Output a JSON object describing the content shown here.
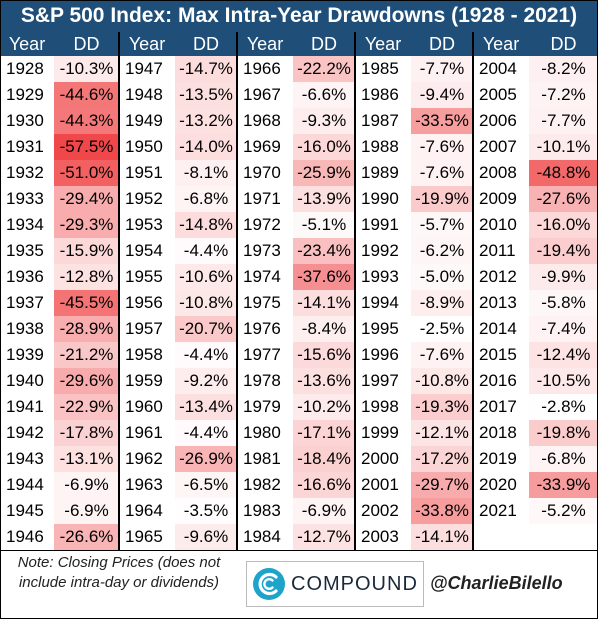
{
  "chart_data": {
    "type": "table",
    "title": "S&P 500 Index: Max Intra-Year Drawdowns (1928 - 2021)",
    "columns": [
      "Year",
      "DD"
    ],
    "groups": [
      {
        "years": [
          "1928",
          "1929",
          "1930",
          "1931",
          "1932",
          "1933",
          "1934",
          "1935",
          "1936",
          "1937",
          "1938",
          "1939",
          "1940",
          "1941",
          "1942",
          "1943",
          "1944",
          "1945",
          "1946"
        ],
        "dd": [
          "-10.3%",
          "-44.6%",
          "-44.3%",
          "-57.5%",
          "-51.0%",
          "-29.4%",
          "-29.3%",
          "-15.9%",
          "-12.8%",
          "-45.5%",
          "-28.9%",
          "-21.2%",
          "-29.6%",
          "-22.9%",
          "-17.8%",
          "-13.1%",
          "-6.9%",
          "-6.9%",
          "-26.6%"
        ],
        "values": [
          -10.3,
          -44.6,
          -44.3,
          -57.5,
          -51.0,
          -29.4,
          -29.3,
          -15.9,
          -12.8,
          -45.5,
          -28.9,
          -21.2,
          -29.6,
          -22.9,
          -17.8,
          -13.1,
          -6.9,
          -6.9,
          -26.6
        ]
      },
      {
        "years": [
          "1947",
          "1948",
          "1949",
          "1950",
          "1951",
          "1952",
          "1953",
          "1954",
          "1955",
          "1956",
          "1957",
          "1958",
          "1959",
          "1960",
          "1961",
          "1962",
          "1963",
          "1964",
          "1965"
        ],
        "dd": [
          "-14.7%",
          "-13.5%",
          "-13.2%",
          "-14.0%",
          "-8.1%",
          "-6.8%",
          "-14.8%",
          "-4.4%",
          "-10.6%",
          "-10.8%",
          "-20.7%",
          "-4.4%",
          "-9.2%",
          "-13.4%",
          "-4.4%",
          "-26.9%",
          "-6.5%",
          "-3.5%",
          "-9.6%"
        ],
        "values": [
          -14.7,
          -13.5,
          -13.2,
          -14.0,
          -8.1,
          -6.8,
          -14.8,
          -4.4,
          -10.6,
          -10.8,
          -20.7,
          -4.4,
          -9.2,
          -13.4,
          -4.4,
          -26.9,
          -6.5,
          -3.5,
          -9.6
        ]
      },
      {
        "years": [
          "1966",
          "1967",
          "1968",
          "1969",
          "1970",
          "1971",
          "1972",
          "1973",
          "1974",
          "1975",
          "1976",
          "1977",
          "1978",
          "1979",
          "1980",
          "1981",
          "1982",
          "1983",
          "1984"
        ],
        "dd": [
          "-22.2%",
          "-6.6%",
          "-9.3%",
          "-16.0%",
          "-25.9%",
          "-13.9%",
          "-5.1%",
          "-23.4%",
          "-37.6%",
          "-14.1%",
          "-8.4%",
          "-15.6%",
          "-13.6%",
          "-10.2%",
          "-17.1%",
          "-18.4%",
          "-16.6%",
          "-6.9%",
          "-12.7%"
        ],
        "values": [
          -22.2,
          -6.6,
          -9.3,
          -16.0,
          -25.9,
          -13.9,
          -5.1,
          -23.4,
          -37.6,
          -14.1,
          -8.4,
          -15.6,
          -13.6,
          -10.2,
          -17.1,
          -18.4,
          -16.6,
          -6.9,
          -12.7
        ]
      },
      {
        "years": [
          "1985",
          "1986",
          "1987",
          "1988",
          "1989",
          "1990",
          "1991",
          "1992",
          "1993",
          "1994",
          "1995",
          "1996",
          "1997",
          "1998",
          "1999",
          "2000",
          "2001",
          "2002",
          "2003"
        ],
        "dd": [
          "-7.7%",
          "-9.4%",
          "-33.5%",
          "-7.6%",
          "-7.6%",
          "-19.9%",
          "-5.7%",
          "-6.2%",
          "-5.0%",
          "-8.9%",
          "-2.5%",
          "-7.6%",
          "-10.8%",
          "-19.3%",
          "-12.1%",
          "-17.2%",
          "-29.7%",
          "-33.8%",
          "-14.1%"
        ],
        "values": [
          -7.7,
          -9.4,
          -33.5,
          -7.6,
          -7.6,
          -19.9,
          -5.7,
          -6.2,
          -5.0,
          -8.9,
          -2.5,
          -7.6,
          -10.8,
          -19.3,
          -12.1,
          -17.2,
          -29.7,
          -33.8,
          -14.1
        ]
      },
      {
        "years": [
          "2004",
          "2005",
          "2006",
          "2007",
          "2008",
          "2009",
          "2010",
          "2011",
          "2012",
          "2013",
          "2014",
          "2015",
          "2016",
          "2017",
          "2018",
          "2019",
          "2020",
          "2021"
        ],
        "dd": [
          "-8.2%",
          "-7.2%",
          "-7.7%",
          "-10.1%",
          "-48.8%",
          "-27.6%",
          "-16.0%",
          "-19.4%",
          "-9.9%",
          "-5.8%",
          "-7.4%",
          "-12.4%",
          "-10.5%",
          "-2.8%",
          "-19.8%",
          "-6.8%",
          "-33.9%",
          "-5.2%"
        ],
        "values": [
          -8.2,
          -7.2,
          -7.7,
          -10.1,
          -48.8,
          -27.6,
          -16.0,
          -19.4,
          -9.9,
          -5.8,
          -7.4,
          -12.4,
          -10.5,
          -2.8,
          -19.8,
          -6.8,
          -33.9,
          -5.2
        ]
      }
    ],
    "color_scale": {
      "min_color": "#ffffff",
      "max_color": "#f0484a"
    }
  },
  "footer": {
    "note": "Note: Closing Prices (does not include intra-day or dividends)",
    "logo_text": "COMPOUND",
    "handle": "@CharlieBilello"
  },
  "colors": {
    "header_bg": "#1f4e79",
    "header_text": "#ffffff",
    "logo_accent": "#1fa4c9"
  }
}
